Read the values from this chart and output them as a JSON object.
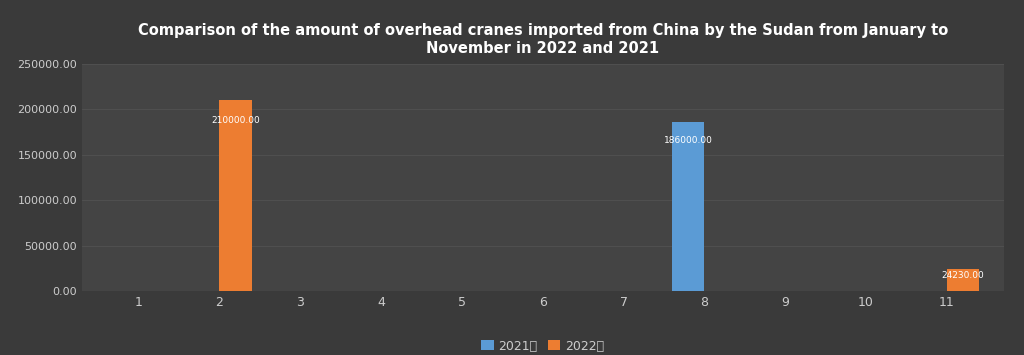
{
  "title": "Comparison of the amount of overhead cranes imported from China by the Sudan from January to\nNovember in 2022 and 2021",
  "months": [
    1,
    2,
    3,
    4,
    5,
    6,
    7,
    8,
    9,
    10,
    11
  ],
  "data_2021": [
    0,
    0,
    0,
    0,
    0,
    0,
    0,
    186000.0,
    0,
    0,
    0
  ],
  "data_2022": [
    0,
    210000.0,
    0,
    0,
    0,
    0,
    0,
    0,
    0,
    0,
    24230.0
  ],
  "color_2021": "#5B9BD5",
  "color_2022": "#ED7D31",
  "background_color": "#3A3A3A",
  "plot_bg_color": "#444444",
  "text_color": "#CCCCCC",
  "grid_color": "#555555",
  "ylim": [
    0,
    250000
  ],
  "yticks": [
    0,
    50000,
    100000,
    150000,
    200000,
    250000
  ],
  "bar_width": 0.4,
  "legend_2021": "2021年",
  "legend_2022": "2022年"
}
